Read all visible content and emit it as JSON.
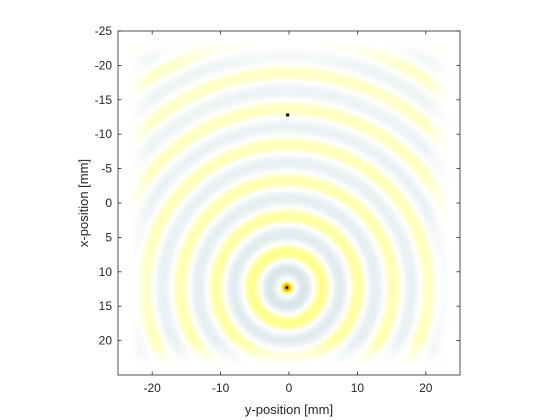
{
  "chart_data": {
    "type": "heatmap",
    "title": "",
    "xlabel": "y-position [mm]",
    "ylabel": "x-position [mm]",
    "xlim": [
      -25,
      25
    ],
    "ylim": [
      -25,
      25
    ],
    "y_axis_reversed": true,
    "x_ticks": [
      -20,
      -10,
      0,
      10,
      20
    ],
    "x_tick_labels": [
      "-20",
      "-10",
      "0",
      "10",
      "20"
    ],
    "y_ticks": [
      -25,
      -20,
      -15,
      -10,
      -5,
      0,
      5,
      10,
      15,
      20
    ],
    "y_tick_labels": [
      "-25",
      "-20",
      "-15",
      "-10",
      "-5",
      "0",
      "5",
      "10",
      "15",
      "20"
    ],
    "grid": false,
    "field": {
      "description": "concentric wave pattern",
      "source_center": {
        "y": -0.3,
        "x": 12.3
      },
      "ring_spacing_mm": 5.2,
      "field_half_width_mm": 23.5,
      "colors": {
        "positive": "#ffff66",
        "negative": "#d2e2e6",
        "background": "#ffffff"
      }
    },
    "markers": [
      {
        "name": "source",
        "y": -0.3,
        "x": 12.3,
        "color": "#e6a000",
        "center_color": "#000000"
      },
      {
        "name": "sensor",
        "y": -0.2,
        "x": -12.8,
        "color": "#000000"
      }
    ]
  }
}
